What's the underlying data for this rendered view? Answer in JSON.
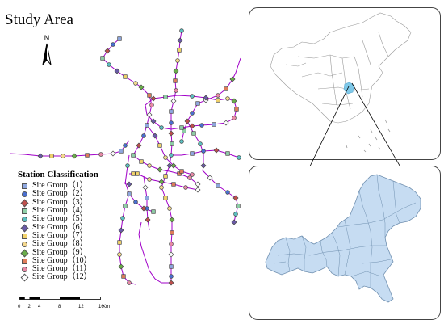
{
  "title": "Study Area",
  "north_label": "N",
  "legend": {
    "title": "Station Classification",
    "items": [
      {
        "label": "Site Group（1）",
        "shape": "square",
        "color": "#8fa8e0"
      },
      {
        "label": "Site Group（2）",
        "shape": "circle",
        "color": "#4a6fd0"
      },
      {
        "label": "Site Group（3）",
        "shape": "diamond",
        "color": "#c0504d"
      },
      {
        "label": "Site Group（4）",
        "shape": "square",
        "color": "#8fcfa8"
      },
      {
        "label": "Site Group（5）",
        "shape": "circle",
        "color": "#5bbfc0"
      },
      {
        "label": "Site Group（6）",
        "shape": "diamond",
        "color": "#6a5aa8"
      },
      {
        "label": "Site Group（7）",
        "shape": "square",
        "color": "#f2d36b"
      },
      {
        "label": "Site Group（8）",
        "shape": "circle",
        "color": "#f5d98e"
      },
      {
        "label": "Site Group（9）",
        "shape": "diamond",
        "color": "#6aae4a"
      },
      {
        "label": "Site Group（10）",
        "shape": "square",
        "color": "#e07d5a"
      },
      {
        "label": "Site Group（11）",
        "shape": "circle",
        "color": "#e88aa6"
      },
      {
        "label": "Site Group（12）",
        "shape": "diamond",
        "color": "#ffffff"
      }
    ]
  },
  "scale_bar": {
    "ticks": [
      "0",
      "2",
      "4",
      "8",
      "12",
      "16"
    ],
    "unit": "Km"
  },
  "colors": {
    "line": "#a000c8",
    "highlight_region": "#7ec8e8",
    "region_fill": "#c6dcf2",
    "region_border": "#7090b0",
    "china_border": "#999999"
  }
}
